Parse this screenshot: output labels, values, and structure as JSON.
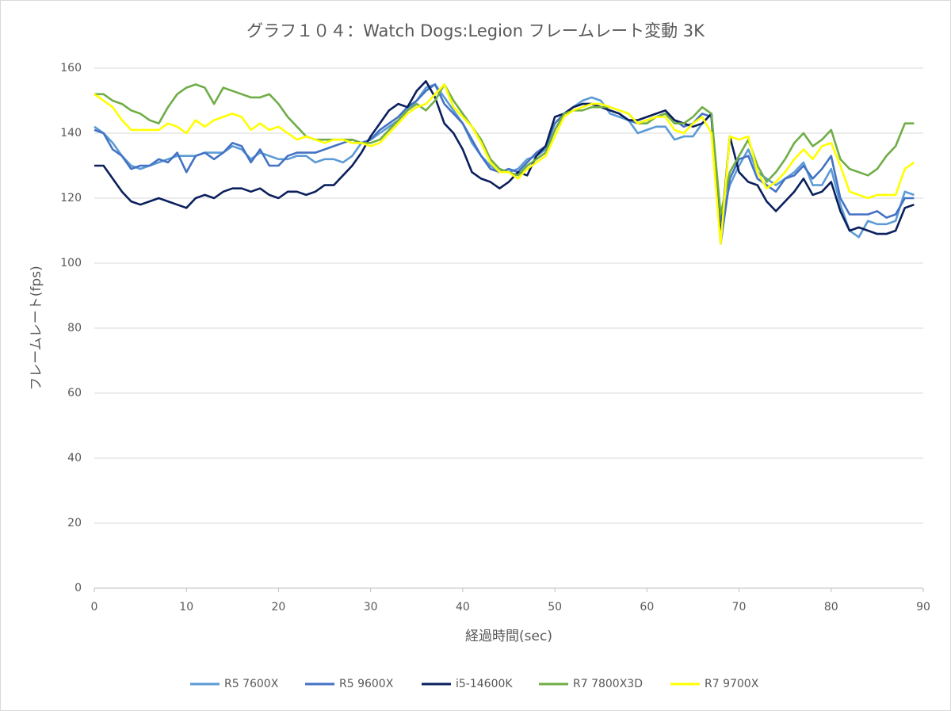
{
  "chart_data": {
    "type": "line",
    "title": "グラフ１０４：Watch Dogs:Legion フレームレート変動 3K",
    "x_label": "経過時間(sec)",
    "y_label": "フレームレート(fps)",
    "x": [
      0,
      1,
      2,
      3,
      4,
      5,
      6,
      7,
      8,
      9,
      10,
      11,
      12,
      13,
      14,
      15,
      16,
      17,
      18,
      19,
      20,
      21,
      22,
      23,
      24,
      25,
      26,
      27,
      28,
      29,
      30,
      31,
      32,
      33,
      34,
      35,
      36,
      37,
      38,
      39,
      40,
      41,
      42,
      43,
      44,
      45,
      46,
      47,
      48,
      49,
      50,
      51,
      52,
      53,
      54,
      55,
      56,
      57,
      58,
      59,
      60,
      61,
      62,
      63,
      64,
      65,
      66,
      67,
      68,
      69,
      70,
      71,
      72,
      73,
      74,
      75,
      76,
      77,
      78,
      79,
      80,
      81,
      82,
      83,
      84,
      85,
      86,
      87,
      88,
      89
    ],
    "series": [
      {
        "name": "R5 7600X",
        "color": "#5b9bd5",
        "values": [
          142,
          140,
          137,
          133,
          130,
          129,
          130,
          131,
          132,
          133,
          133,
          133,
          134,
          134,
          134,
          136,
          135,
          132,
          134,
          133,
          132,
          132,
          133,
          133,
          131,
          132,
          132,
          131,
          133,
          137,
          138,
          140,
          142,
          144,
          147,
          150,
          154,
          155,
          151,
          147,
          143,
          137,
          133,
          130,
          128,
          128,
          129,
          132,
          133,
          135,
          141,
          146,
          148,
          150,
          151,
          150,
          146,
          145,
          144,
          140,
          141,
          142,
          142,
          138,
          139,
          139,
          143,
          146,
          113,
          124,
          130,
          135,
          128,
          126,
          124,
          126,
          128,
          131,
          124,
          124,
          129,
          118,
          110,
          108,
          113,
          112,
          112,
          113,
          122,
          121
        ]
      },
      {
        "name": "R5 9600X",
        "color": "#4472c4",
        "values": [
          141,
          140,
          135,
          133,
          129,
          130,
          130,
          132,
          131,
          134,
          128,
          133,
          134,
          132,
          134,
          137,
          136,
          131,
          135,
          130,
          130,
          133,
          134,
          134,
          134,
          135,
          136,
          137,
          138,
          137,
          138,
          141,
          143,
          145,
          148,
          150,
          153,
          155,
          149,
          146,
          143,
          138,
          133,
          129,
          128,
          129,
          128,
          131,
          134,
          136,
          143,
          146,
          148,
          149,
          149,
          148,
          147,
          146,
          144,
          143,
          144,
          145,
          146,
          144,
          142,
          143,
          146,
          145,
          106,
          126,
          132,
          133,
          126,
          124,
          122,
          126,
          127,
          130,
          126,
          129,
          133,
          120,
          115,
          115,
          115,
          116,
          114,
          115,
          120,
          120
        ]
      },
      {
        "name": "i5-14600K",
        "color": "#0a1f5c",
        "values": [
          130,
          130,
          126,
          122,
          119,
          118,
          119,
          120,
          119,
          118,
          117,
          120,
          121,
          120,
          122,
          123,
          123,
          122,
          123,
          121,
          120,
          122,
          122,
          121,
          122,
          124,
          124,
          127,
          130,
          134,
          139,
          143,
          147,
          149,
          148,
          153,
          156,
          151,
          143,
          140,
          135,
          128,
          126,
          125,
          123,
          125,
          128,
          127,
          133,
          136,
          145,
          146,
          148,
          149,
          149,
          148,
          147,
          146,
          144,
          144,
          145,
          146,
          147,
          144,
          143,
          142,
          143,
          146,
          108,
          139,
          128,
          125,
          124,
          119,
          116,
          119,
          122,
          126,
          121,
          122,
          125,
          116,
          110,
          111,
          110,
          109,
          109,
          110,
          117,
          118
        ]
      },
      {
        "name": "R7 7800X3D",
        "color": "#70ad47",
        "values": [
          152,
          152,
          150,
          149,
          147,
          146,
          144,
          143,
          148,
          152,
          154,
          155,
          154,
          149,
          154,
          153,
          152,
          151,
          151,
          152,
          149,
          145,
          142,
          139,
          138,
          138,
          138,
          138,
          138,
          137,
          137,
          138,
          141,
          144,
          147,
          149,
          147,
          150,
          155,
          150,
          146,
          142,
          138,
          132,
          129,
          128,
          127,
          130,
          132,
          134,
          141,
          146,
          147,
          147,
          148,
          148,
          148,
          147,
          146,
          143,
          143,
          145,
          146,
          143,
          143,
          145,
          148,
          146,
          115,
          128,
          133,
          138,
          130,
          125,
          128,
          132,
          137,
          140,
          136,
          138,
          141,
          132,
          129,
          128,
          127,
          129,
          133,
          136,
          143,
          143
        ]
      },
      {
        "name": "R7 9700X",
        "color": "#ffff00",
        "values": [
          152,
          150,
          148,
          144,
          141,
          141,
          141,
          141,
          143,
          142,
          140,
          144,
          142,
          144,
          145,
          146,
          145,
          141,
          143,
          141,
          142,
          140,
          138,
          139,
          138,
          137,
          138,
          138,
          137,
          137,
          136,
          137,
          140,
          143,
          146,
          148,
          149,
          152,
          155,
          148,
          145,
          142,
          137,
          131,
          128,
          128,
          126,
          129,
          131,
          133,
          139,
          145,
          147,
          148,
          149,
          149,
          148,
          147,
          146,
          143,
          144,
          145,
          145,
          141,
          140,
          143,
          145,
          140,
          106,
          139,
          138,
          139,
          128,
          123,
          125,
          128,
          132,
          135,
          132,
          136,
          137,
          130,
          122,
          121,
          120,
          121,
          121,
          121,
          129,
          131
        ]
      }
    ],
    "xlim": [
      0,
      90
    ],
    "xticks": [
      0,
      10,
      20,
      30,
      40,
      50,
      60,
      70,
      80,
      90
    ],
    "ylim": [
      0,
      160
    ],
    "yticks": [
      0,
      20,
      40,
      60,
      80,
      100,
      120,
      140,
      160
    ],
    "grid": true,
    "legend": "bottom"
  }
}
